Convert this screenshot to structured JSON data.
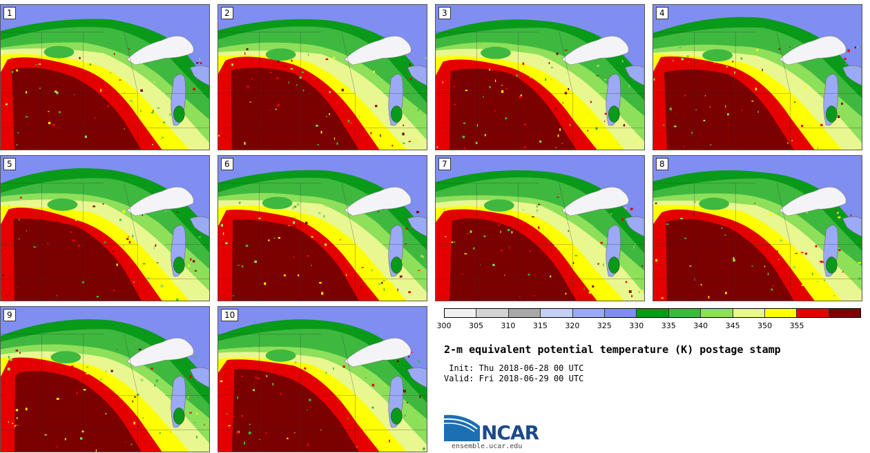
{
  "panels": [
    "1",
    "2",
    "3",
    "4",
    "5",
    "6",
    "7",
    "8",
    "9",
    "10"
  ],
  "colorbar": {
    "ticks": [
      "300",
      "305",
      "310",
      "315",
      "320",
      "325",
      "330",
      "335",
      "340",
      "345",
      "350",
      "355"
    ],
    "colors": [
      "#f0f0f0",
      "#d4d4d4",
      "#a8a8a8",
      "#c4d0f4",
      "#9aaaf4",
      "#7f8ef0",
      "#0a9a1a",
      "#3fb83f",
      "#8edf5a",
      "#e9f790",
      "#ffff00",
      "#e50000",
      "#7b0000"
    ]
  },
  "title": "2-m equivalent potential temperature (K) postage stamp",
  "init": " Init: Thu 2018-06-28 00 UTC",
  "valid": "Valid: Fri 2018-06-29 00 UTC",
  "logo": {
    "text": "NCAR",
    "url": "ensemble.ucar.edu"
  }
}
